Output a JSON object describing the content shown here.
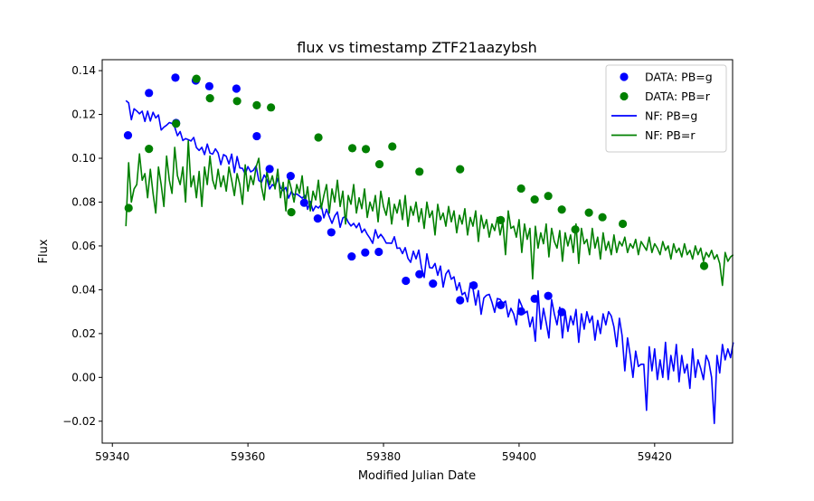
{
  "chart_data": {
    "type": "scatter",
    "title": "flux vs timestamp ZTF21aazybsh",
    "xlabel": "Modified Julian Date",
    "ylabel": "Flux",
    "xlim": [
      59338.5,
      59431.5
    ],
    "ylim": [
      -0.03,
      0.145
    ],
    "xticks": [
      59340,
      59360,
      59380,
      59400,
      59420
    ],
    "xtick_labels": [
      "59340",
      "59360",
      "59380",
      "59400",
      "59420"
    ],
    "yticks": [
      -0.02,
      0.0,
      0.02,
      0.04,
      0.06,
      0.08,
      0.1,
      0.12,
      0.14
    ],
    "ytick_labels": [
      "−0.02",
      "0.00",
      "0.02",
      "0.04",
      "0.06",
      "0.08",
      "0.10",
      "0.12",
      "0.14"
    ],
    "grid": false,
    "legend_position": "top-right",
    "colors": {
      "g": "#0000ff",
      "r": "#008000"
    },
    "scatter_series": [
      {
        "name": "DATA: PB=g",
        "color": "#0000ff",
        "points": [
          [
            59342.3,
            0.1105
          ],
          [
            59345.4,
            0.1298
          ],
          [
            59349.3,
            0.1368
          ],
          [
            59349.4,
            0.1161
          ],
          [
            59352.3,
            0.1355
          ],
          [
            59354.3,
            0.1329
          ],
          [
            59358.3,
            0.1318
          ],
          [
            59361.3,
            0.1101
          ],
          [
            59363.2,
            0.0951
          ],
          [
            59366.3,
            0.0919
          ],
          [
            59368.3,
            0.0797
          ],
          [
            59370.3,
            0.0725
          ],
          [
            59372.3,
            0.0662
          ],
          [
            59375.3,
            0.0552
          ],
          [
            59377.3,
            0.057
          ],
          [
            59379.3,
            0.0573
          ],
          [
            59383.3,
            0.0441
          ],
          [
            59385.3,
            0.0471
          ],
          [
            59387.3,
            0.0428
          ],
          [
            59391.3,
            0.0352
          ],
          [
            59393.3,
            0.042
          ],
          [
            59397.3,
            0.033
          ],
          [
            59400.3,
            0.0301
          ],
          [
            59402.3,
            0.0359
          ],
          [
            59404.3,
            0.0372
          ],
          [
            59406.3,
            0.0298
          ]
        ]
      },
      {
        "name": "DATA: PB=r",
        "color": "#008000",
        "points": [
          [
            59342.4,
            0.0773
          ],
          [
            59345.4,
            0.1043
          ],
          [
            59349.4,
            0.1158
          ],
          [
            59352.4,
            0.1363
          ],
          [
            59354.4,
            0.1274
          ],
          [
            59358.4,
            0.1261
          ],
          [
            59361.3,
            0.1242
          ],
          [
            59363.4,
            0.1232
          ],
          [
            59366.4,
            0.0754
          ],
          [
            59370.4,
            0.1095
          ],
          [
            59375.4,
            0.1046
          ],
          [
            59377.4,
            0.1042
          ],
          [
            59379.4,
            0.0973
          ],
          [
            59381.3,
            0.1054
          ],
          [
            59385.3,
            0.0939
          ],
          [
            59391.3,
            0.095
          ],
          [
            59397.3,
            0.0718
          ],
          [
            59400.3,
            0.0862
          ],
          [
            59402.3,
            0.0812
          ],
          [
            59404.3,
            0.0828
          ],
          [
            59406.3,
            0.0766
          ],
          [
            59408.3,
            0.0675
          ],
          [
            59410.3,
            0.0752
          ],
          [
            59412.3,
            0.0731
          ],
          [
            59415.3,
            0.0701
          ],
          [
            59427.3,
            0.0509
          ]
        ]
      }
    ],
    "line_series": [
      {
        "name": "NF: PB=g",
        "color": "#0000ff",
        "x_start": 59342.0,
        "x_step": 0.4,
        "values": [
          0.1263,
          0.1253,
          0.1176,
          0.1226,
          0.1216,
          0.1203,
          0.1215,
          0.1168,
          0.1215,
          0.117,
          0.121,
          0.1184,
          0.1198,
          0.1129,
          0.1142,
          0.1151,
          0.1163,
          0.1159,
          0.1142,
          0.1103,
          0.1122,
          0.1081,
          0.109,
          0.1085,
          0.1079,
          0.1095,
          0.1049,
          0.1036,
          0.105,
          0.1017,
          0.1065,
          0.1024,
          0.1019,
          0.1043,
          0.1024,
          0.0971,
          0.1017,
          0.1009,
          0.0974,
          0.1019,
          0.0935,
          0.1008,
          0.0956,
          0.0954,
          0.0928,
          0.0962,
          0.0938,
          0.0945,
          0.0965,
          0.0899,
          0.089,
          0.0924,
          0.0904,
          0.086,
          0.088,
          0.0871,
          0.0908,
          0.0866,
          0.0852,
          0.0867,
          0.0818,
          0.0848,
          0.0833,
          0.0837,
          0.0828,
          0.0818,
          0.0831,
          0.0767,
          0.0803,
          0.076,
          0.0782,
          0.0773,
          0.0788,
          0.0728,
          0.0767,
          0.0734,
          0.0703,
          0.0736,
          0.0755,
          0.0685,
          0.0728,
          0.0735,
          0.0708,
          0.0691,
          0.0703,
          0.0683,
          0.0704,
          0.0661,
          0.0677,
          0.0653,
          0.0635,
          0.0612,
          0.0674,
          0.0636,
          0.0653,
          0.0636,
          0.0613,
          0.0613,
          0.0612,
          0.0642,
          0.0589,
          0.0591,
          0.0565,
          0.0592,
          0.0544,
          0.0525,
          0.0576,
          0.0541,
          0.0581,
          0.0501,
          0.0456,
          0.0564,
          0.0501,
          0.0499,
          0.052,
          0.0466,
          0.0508,
          0.0412,
          0.0472,
          0.049,
          0.0448,
          0.0459,
          0.0398,
          0.0432,
          0.0377,
          0.0388,
          0.0345,
          0.043,
          0.0405,
          0.033,
          0.0396,
          0.0288,
          0.0362,
          0.0375,
          0.0379,
          0.0343,
          0.0297,
          0.036,
          0.0356,
          0.0337,
          0.0348,
          0.0276,
          0.0315,
          0.029,
          0.024,
          0.0356,
          0.0326,
          0.0293,
          0.0302,
          0.0231,
          0.0275,
          0.0165,
          0.0395,
          0.022,
          0.0315,
          0.025,
          0.018,
          0.0355,
          0.029,
          0.024,
          0.032,
          0.018,
          0.03,
          0.021,
          0.028,
          0.024,
          0.031,
          0.016,
          0.029,
          0.022,
          0.03,
          0.025,
          0.028,
          0.017,
          0.026,
          0.02,
          0.029,
          0.024,
          0.03,
          0.028,
          0.023,
          0.014,
          0.027,
          0.019,
          0.003,
          0.018,
          0.01,
          0.0,
          0.012,
          0.005,
          0.006,
          0.006,
          -0.015,
          0.014,
          0.003,
          0.013,
          -0.001,
          0.008,
          0.0,
          0.016,
          -0.001,
          0.01,
          0.003,
          0.015,
          -0.002,
          0.01,
          0.002,
          0.006,
          -0.005,
          0.013,
          0.0,
          0.008,
          0.004,
          -0.001,
          0.01,
          0.007,
          0.0,
          -0.021,
          0.01,
          0.002,
          0.015,
          0.008,
          0.013,
          0.009,
          0.016
        ]
      },
      {
        "name": "NF: PB=r",
        "color": "#008000",
        "x_start": 59342.0,
        "x_step": 0.4,
        "values": [
          0.069,
          0.098,
          0.08,
          0.086,
          0.088,
          0.102,
          0.09,
          0.093,
          0.082,
          0.095,
          0.084,
          0.075,
          0.096,
          0.088,
          0.078,
          0.101,
          0.09,
          0.084,
          0.105,
          0.092,
          0.088,
          0.096,
          0.08,
          0.108,
          0.087,
          0.092,
          0.082,
          0.094,
          0.078,
          0.096,
          0.088,
          0.101,
          0.09,
          0.086,
          0.095,
          0.087,
          0.092,
          0.085,
          0.096,
          0.09,
          0.083,
          0.093,
          0.088,
          0.079,
          0.097,
          0.085,
          0.092,
          0.088,
          0.096,
          0.1,
          0.087,
          0.081,
          0.094,
          0.088,
          0.092,
          0.086,
          0.095,
          0.082,
          0.089,
          0.076,
          0.091,
          0.086,
          0.08,
          0.088,
          0.084,
          0.092,
          0.079,
          0.087,
          0.076,
          0.085,
          0.081,
          0.09,
          0.077,
          0.083,
          0.088,
          0.075,
          0.086,
          0.08,
          0.09,
          0.078,
          0.085,
          0.07,
          0.083,
          0.079,
          0.088,
          0.075,
          0.082,
          0.077,
          0.086,
          0.073,
          0.08,
          0.076,
          0.083,
          0.071,
          0.085,
          0.078,
          0.074,
          0.082,
          0.07,
          0.079,
          0.075,
          0.081,
          0.072,
          0.083,
          0.069,
          0.078,
          0.074,
          0.08,
          0.071,
          0.077,
          0.068,
          0.08,
          0.073,
          0.076,
          0.065,
          0.079,
          0.072,
          0.075,
          0.069,
          0.078,
          0.071,
          0.076,
          0.066,
          0.074,
          0.07,
          0.077,
          0.065,
          0.073,
          0.069,
          0.076,
          0.062,
          0.074,
          0.068,
          0.072,
          0.064,
          0.07,
          0.067,
          0.073,
          0.065,
          0.071,
          0.056,
          0.076,
          0.068,
          0.069,
          0.064,
          0.072,
          0.057,
          0.07,
          0.063,
          0.068,
          0.045,
          0.069,
          0.059,
          0.066,
          0.061,
          0.07,
          0.055,
          0.068,
          0.062,
          0.059,
          0.067,
          0.053,
          0.066,
          0.06,
          0.065,
          0.057,
          0.07,
          0.052,
          0.068,
          0.061,
          0.063,
          0.056,
          0.068,
          0.059,
          0.064,
          0.054,
          0.066,
          0.058,
          0.062,
          0.056,
          0.065,
          0.057,
          0.062,
          0.06,
          0.064,
          0.057,
          0.061,
          0.059,
          0.063,
          0.056,
          0.062,
          0.06,
          0.058,
          0.064,
          0.057,
          0.061,
          0.059,
          0.056,
          0.062,
          0.058,
          0.06,
          0.054,
          0.061,
          0.057,
          0.059,
          0.055,
          0.061,
          0.056,
          0.058,
          0.054,
          0.06,
          0.056,
          0.059,
          0.053,
          0.057,
          0.055,
          0.058,
          0.054,
          0.056,
          0.052,
          0.042,
          0.057,
          0.053,
          0.055,
          0.056
        ]
      }
    ],
    "legend": [
      {
        "label": "DATA: PB=g",
        "kind": "marker",
        "color": "#0000ff"
      },
      {
        "label": "DATA: PB=r",
        "kind": "marker",
        "color": "#008000"
      },
      {
        "label": "NF: PB=g",
        "kind": "line",
        "color": "#0000ff"
      },
      {
        "label": "NF: PB=r",
        "kind": "line",
        "color": "#008000"
      }
    ]
  }
}
